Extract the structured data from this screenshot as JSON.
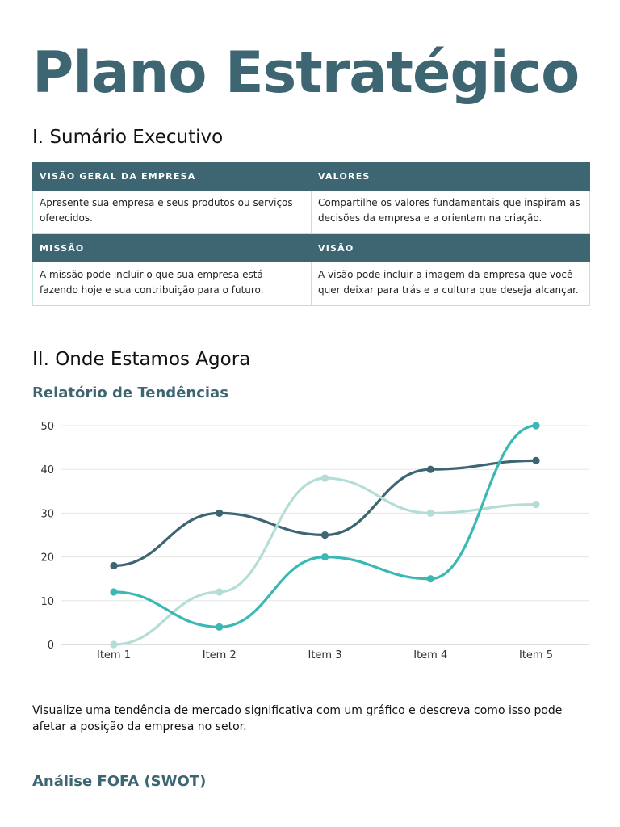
{
  "title": "Plano Estratégico",
  "section1": {
    "heading": "I. Sumário Executivo",
    "table": {
      "row1": {
        "headers": [
          "VISÃO GERAL DA EMPRESA",
          "VALORES"
        ],
        "cells": [
          "Apresente sua empresa e seus produtos ou serviços oferecidos.",
          "Compartilhe os valores fundamentais que inspiram as decisões da empresa e a orientam na criação."
        ]
      },
      "row2": {
        "headers": [
          "MISSÃO",
          "VISÃO"
        ],
        "cells": [
          "A missão pode incluir o que sua empresa está fazendo hoje e sua contribuição para o futuro.",
          "A visão pode incluir a imagem da empresa que você quer deixar para trás e a cultura que deseja alcançar."
        ]
      }
    }
  },
  "section2": {
    "heading": "II. Onde Estamos Agora",
    "chart_heading": "Relatório de Tendências",
    "description": "Visualize uma tendência de mercado significativa com um gráfico e descreva como isso pode afetar a posição da empresa no setor.",
    "swot_heading": "Análise FOFA (SWOT)"
  },
  "chart_data": {
    "type": "line",
    "title": "",
    "xlabel": "",
    "ylabel": "",
    "categories": [
      "Item 1",
      "Item 2",
      "Item 3",
      "Item 4",
      "Item 5"
    ],
    "ylim": [
      0,
      50
    ],
    "yticks": [
      0,
      10,
      20,
      30,
      40,
      50
    ],
    "grid": true,
    "legend": "none",
    "smooth": true,
    "series": [
      {
        "values": [
          18,
          30,
          25,
          40,
          42
        ],
        "color": "#3d6672"
      },
      {
        "values": [
          0,
          12,
          38,
          30,
          32
        ],
        "color": "#b4ddd7"
      },
      {
        "values": [
          12,
          4,
          20,
          15,
          50
        ],
        "color": "#3bb8b4"
      }
    ]
  },
  "colors": {
    "accent": "#3d6672",
    "table_border": "#bfe0db"
  }
}
